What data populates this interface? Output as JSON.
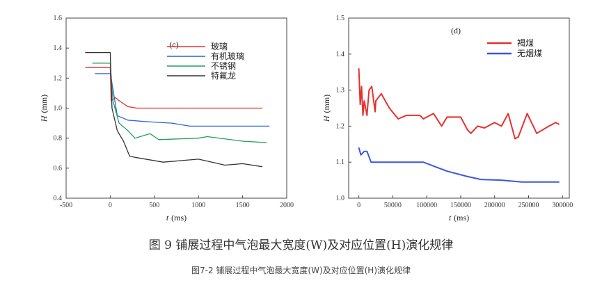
{
  "chart_data": [
    {
      "type": "line",
      "panel_label": "(c)",
      "xlabel_var": "t",
      "xlabel_unit": "(ms)",
      "ylabel_var": "H",
      "ylabel_unit": "(mm)",
      "xlim": [
        -500,
        2000
      ],
      "ylim": [
        0.4,
        1.6
      ],
      "xticks": [
        -500,
        0,
        500,
        1000,
        1500,
        2000
      ],
      "yticks": [
        0.4,
        0.6,
        0.8,
        1.0,
        1.2,
        1.4,
        1.6
      ],
      "legend_position": "top-right",
      "series": [
        {
          "name": "玻璃",
          "color": "#e8302e",
          "x": [
            -280,
            0,
            10,
            60,
            100,
            150,
            200,
            300,
            1720
          ],
          "y": [
            1.27,
            1.27,
            1.05,
            1.07,
            1.05,
            1.03,
            1.01,
            1.0,
            1.0
          ]
        },
        {
          "name": "有机玻璃",
          "color": "#2a62d8",
          "x": [
            -170,
            0,
            10,
            80,
            200,
            400,
            700,
            900,
            1800
          ],
          "y": [
            1.23,
            1.23,
            1.2,
            0.95,
            0.92,
            0.91,
            0.9,
            0.88,
            0.88
          ]
        },
        {
          "name": "不锈钢",
          "color": "#22a060",
          "x": [
            -200,
            0,
            30,
            100,
            200,
            280,
            450,
            550,
            1000,
            1100,
            1500,
            1770
          ],
          "y": [
            1.3,
            1.3,
            1.05,
            0.9,
            0.85,
            0.8,
            0.83,
            0.79,
            0.8,
            0.81,
            0.78,
            0.77
          ]
        },
        {
          "name": "特氟龙",
          "color": "#333333",
          "x": [
            -280,
            0,
            20,
            80,
            150,
            220,
            300,
            600,
            800,
            1000,
            1300,
            1500,
            1720
          ],
          "y": [
            1.37,
            1.37,
            1.0,
            0.85,
            0.78,
            0.68,
            0.67,
            0.64,
            0.65,
            0.66,
            0.62,
            0.63,
            0.61
          ]
        }
      ]
    },
    {
      "type": "line",
      "panel_label": "(d)",
      "xlabel_var": "t",
      "xlabel_unit": "(ms)",
      "ylabel_var": "H",
      "ylabel_unit": "(mm)",
      "xlim": [
        -15000,
        310000
      ],
      "ylim": [
        1.0,
        1.5
      ],
      "xticks": [
        0,
        50000,
        100000,
        150000,
        200000,
        250000,
        300000
      ],
      "yticks": [
        1.0,
        1.1,
        1.2,
        1.3,
        1.4,
        1.5
      ],
      "legend_position": "top-right",
      "series": [
        {
          "name": "褐煤",
          "color": "#e8302e",
          "x": [
            0,
            2000,
            4000,
            6000,
            8000,
            12000,
            15000,
            19000,
            24000,
            25000,
            33000,
            45000,
            58000,
            70000,
            90000,
            95000,
            110000,
            122000,
            130000,
            150000,
            160000,
            165000,
            175000,
            185000,
            200000,
            210000,
            220000,
            230000,
            235000,
            248000,
            262000,
            280000,
            290000,
            295000
          ],
          "y": [
            1.36,
            1.26,
            1.31,
            1.23,
            1.27,
            1.23,
            1.3,
            1.31,
            1.24,
            1.27,
            1.29,
            1.25,
            1.22,
            1.23,
            1.23,
            1.22,
            1.235,
            1.2,
            1.225,
            1.225,
            1.19,
            1.18,
            1.2,
            1.195,
            1.21,
            1.2,
            1.235,
            1.165,
            1.17,
            1.235,
            1.18,
            1.2,
            1.21,
            1.205
          ]
        },
        {
          "name": "无烟煤",
          "color": "#3b55e0",
          "x": [
            0,
            3000,
            8000,
            12000,
            18000,
            20000,
            60000,
            95000,
            130000,
            160000,
            180000,
            210000,
            240000,
            295000
          ],
          "y": [
            1.14,
            1.12,
            1.13,
            1.13,
            1.1,
            1.1,
            1.1,
            1.1,
            1.075,
            1.06,
            1.052,
            1.05,
            1.045,
            1.045
          ]
        }
      ]
    }
  ],
  "caption_main": "图 9 铺展过程中气泡最大宽度(W)及对应位置(H)演化规律",
  "caption_sub": "图7-2 铺展过程中气泡最大宽度(W)及对应位置(H)演化规律"
}
